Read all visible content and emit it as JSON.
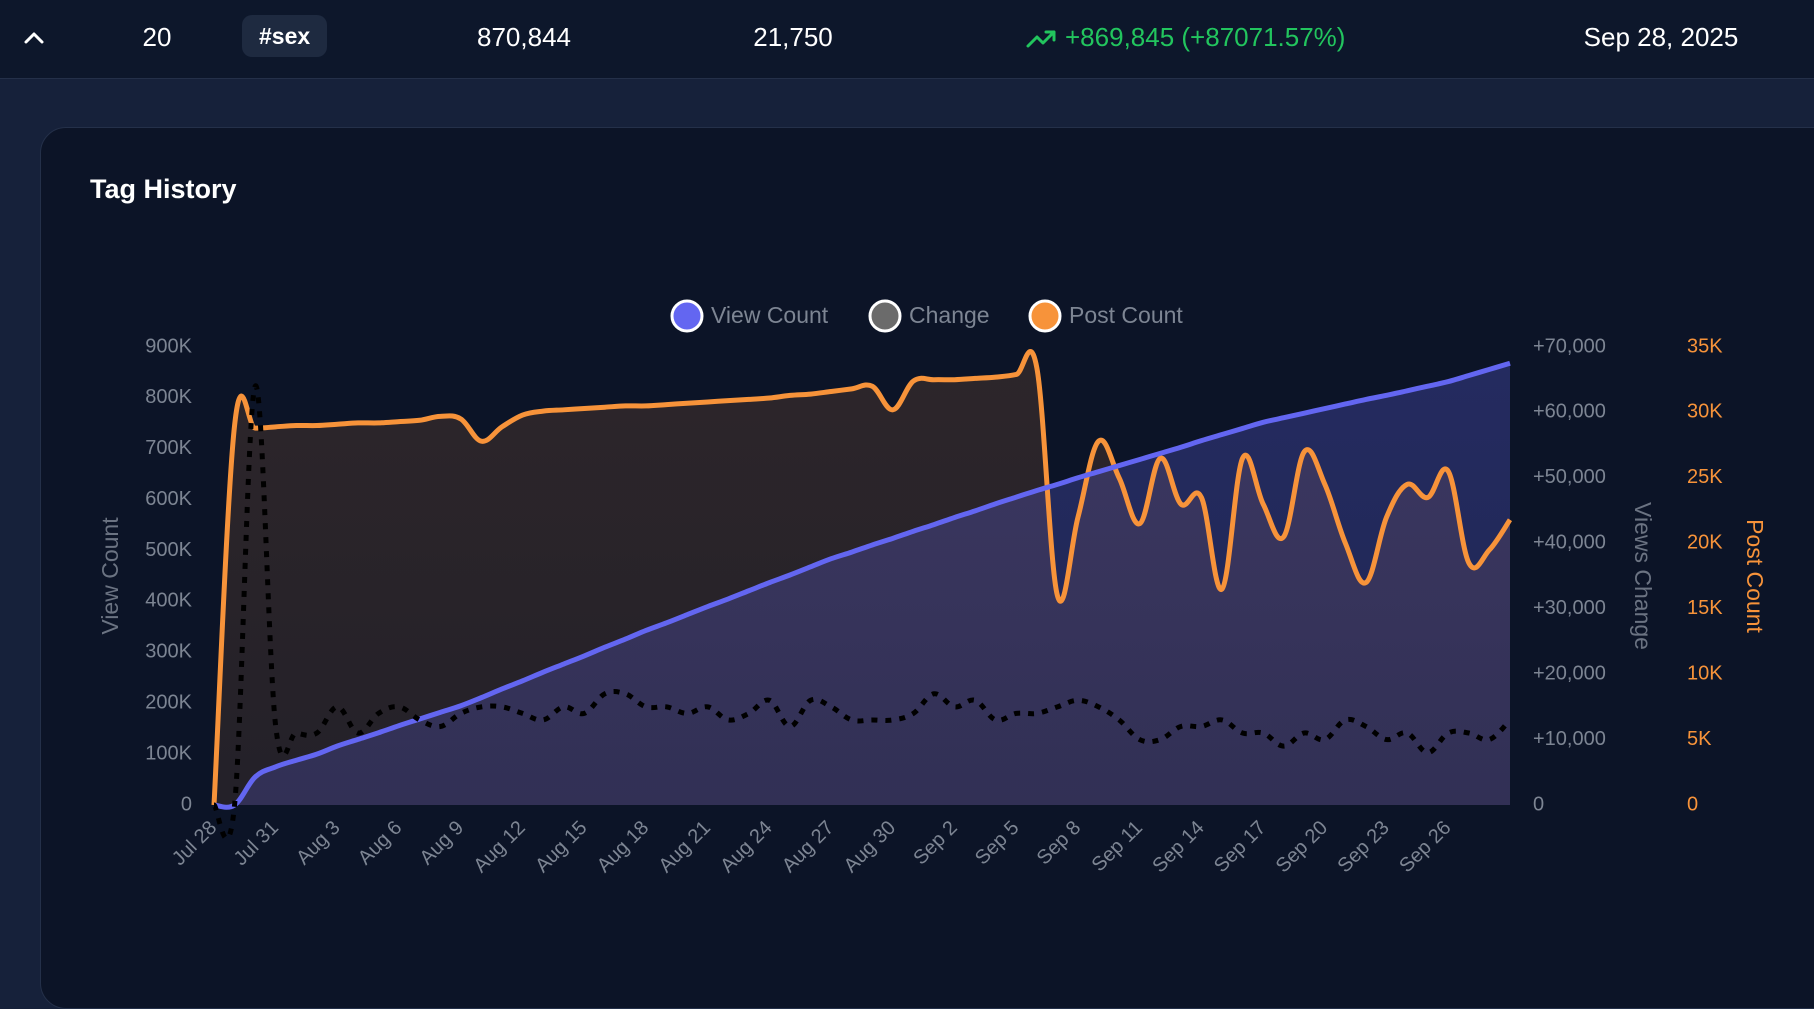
{
  "row": {
    "rank": "20",
    "tag": "#sex",
    "views": "870,844",
    "posts": "21,750",
    "change": "+869,845 (+87071.57%)",
    "date": "Sep 28, 2025"
  },
  "chart_data": {
    "type": "line",
    "title": "Tag History",
    "categories": [
      "Jul 28",
      null,
      null,
      "Jul 31",
      null,
      null,
      "Aug 3",
      null,
      null,
      "Aug 6",
      null,
      null,
      "Aug 9",
      null,
      null,
      "Aug 12",
      null,
      null,
      "Aug 15",
      null,
      null,
      "Aug 18",
      null,
      null,
      "Aug 21",
      null,
      null,
      "Aug 24",
      null,
      null,
      "Aug 27",
      null,
      null,
      "Aug 30",
      null,
      null,
      "Sep 2",
      null,
      null,
      "Sep 5",
      null,
      null,
      "Sep 8",
      null,
      null,
      "Sep 11",
      null,
      null,
      "Sep 14",
      null,
      null,
      "Sep 17",
      null,
      null,
      "Sep 20",
      null,
      null,
      "Sep 23",
      null,
      null,
      "Sep 26",
      null,
      null,
      null
    ],
    "series": [
      {
        "name": "View Count",
        "color": "#6366f1",
        "legend_color": "#6366f1",
        "axis": "y",
        "fill": true,
        "dashed": false,
        "values": [
          0,
          0,
          55000,
          75000,
          88000,
          100000,
          116000,
          129000,
          142000,
          156000,
          169000,
          182000,
          195000,
          211000,
          228000,
          244000,
          261000,
          277000,
          293000,
          310000,
          326000,
          343000,
          358000,
          374000,
          390000,
          405000,
          421000,
          437000,
          452000,
          468000,
          484000,
          497000,
          511000,
          524000,
          538000,
          551000,
          565000,
          578000,
          592000,
          605000,
          618000,
          630000,
          643000,
          655000,
          667000,
          679000,
          691000,
          703000,
          716000,
          728000,
          740000,
          752000,
          761000,
          770000,
          779000,
          788000,
          797000,
          805000,
          814000,
          823000,
          832000,
          844000,
          856000,
          868000
        ]
      },
      {
        "name": "Change",
        "color": "#000000",
        "legend_color": "#6b6b6b",
        "axis": "y2",
        "fill": false,
        "dashed": true,
        "values": [
          0,
          0,
          64000,
          12000,
          11000,
          11000,
          15000,
          11000,
          14000,
          15000,
          13000,
          12000,
          14000,
          15000,
          15000,
          14000,
          13000,
          15000,
          14000,
          17000,
          17000,
          15000,
          15000,
          14000,
          15000,
          13000,
          14000,
          16000,
          12000,
          16000,
          15000,
          13000,
          13000,
          13000,
          14000,
          17000,
          15000,
          16000,
          13000,
          14000,
          14000,
          15000,
          16000,
          15000,
          13000,
          10000,
          10000,
          12000,
          12000,
          13000,
          11000,
          11000,
          9000,
          11000,
          10000,
          13000,
          12000,
          10000,
          11000,
          8000,
          11000,
          11000,
          10000,
          13000
        ]
      },
      {
        "name": "Post Count",
        "color": "#f7933a",
        "legend_color": "#f7933a",
        "axis": "y3",
        "fill": true,
        "dashed": false,
        "values": [
          0,
          29000,
          28800,
          28900,
          29000,
          29000,
          29100,
          29200,
          29200,
          29300,
          29400,
          29700,
          29500,
          27800,
          28900,
          29800,
          30100,
          30200,
          30300,
          30400,
          30500,
          30500,
          30600,
          30700,
          30800,
          30900,
          31000,
          31100,
          31300,
          31400,
          31600,
          31800,
          32000,
          30200,
          32400,
          32500,
          32500,
          32600,
          32700,
          32900,
          33400,
          16000,
          22000,
          27800,
          25000,
          21500,
          26500,
          23000,
          23500,
          16500,
          26500,
          23000,
          20500,
          27000,
          24500,
          20000,
          17000,
          22000,
          24500,
          23500,
          25500,
          18500,
          19500,
          21800
        ]
      }
    ],
    "ylabel": "View Count",
    "ylim": [
      0,
      900000
    ],
    "yticks": [
      0,
      {
        "value": 100000,
        "label": "100K"
      },
      {
        "value": 200000,
        "label": "200K"
      },
      {
        "value": 300000,
        "label": "300K"
      },
      {
        "value": 400000,
        "label": "400K"
      },
      {
        "value": 500000,
        "label": "500K"
      },
      {
        "value": 600000,
        "label": "600K"
      },
      {
        "value": 700000,
        "label": "700K"
      },
      {
        "value": 800000,
        "label": "800K"
      },
      {
        "value": 900000,
        "label": "900K"
      }
    ],
    "y2label": "Views Change",
    "y2lim": [
      0,
      70000
    ],
    "y2ticks": [
      0,
      {
        "value": 10000,
        "label": "+10,000"
      },
      {
        "value": 20000,
        "label": "+20,000"
      },
      {
        "value": 30000,
        "label": "+30,000"
      },
      {
        "value": 40000,
        "label": "+40,000"
      },
      {
        "value": 50000,
        "label": "+50,000"
      },
      {
        "value": 60000,
        "label": "+60,000"
      },
      {
        "value": 70000,
        "label": "+70,000"
      }
    ],
    "y3label": "Post Count",
    "y3lim": [
      0,
      35000
    ],
    "y3ticks": [
      0,
      {
        "value": 5000,
        "label": "5K"
      },
      {
        "value": 10000,
        "label": "10K"
      },
      {
        "value": 15000,
        "label": "15K"
      },
      {
        "value": 20000,
        "label": "20K"
      },
      {
        "value": 25000,
        "label": "25K"
      },
      {
        "value": 30000,
        "label": "30K"
      },
      {
        "value": 35000,
        "label": "35K"
      }
    ],
    "grid": false,
    "legend": "top"
  }
}
